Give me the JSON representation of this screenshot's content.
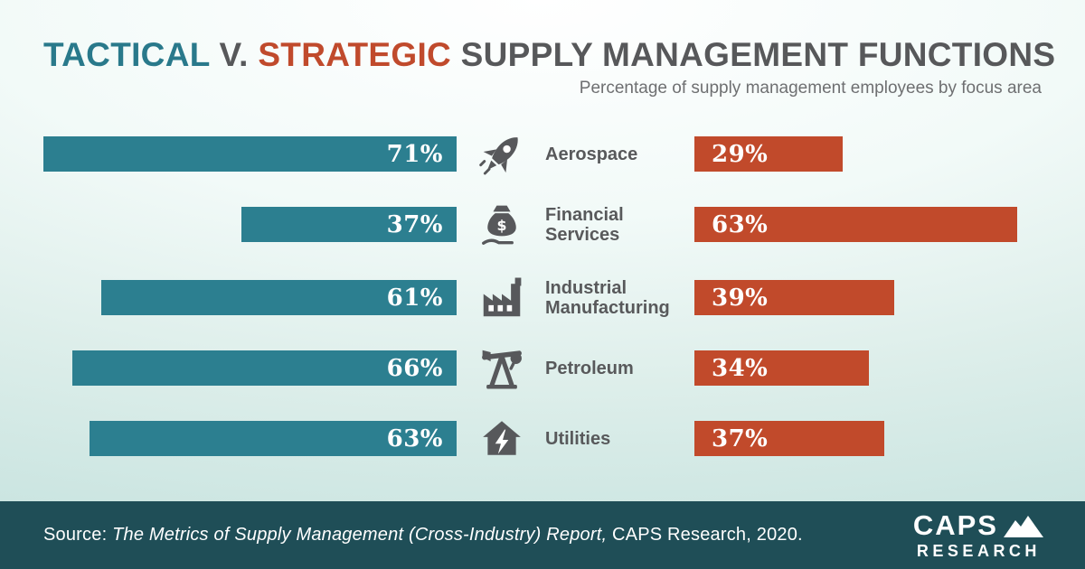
{
  "title": {
    "part1": "TACTICAL",
    "part2": "V.",
    "part3": "STRATEGIC",
    "part4": "SUPPLY MANAGEMENT FUNCTIONS"
  },
  "subtitle": "Percentage of supply management employees by focus area",
  "chart_data": {
    "type": "bar",
    "orientation": "horizontal",
    "diverging": true,
    "title": "Tactical v. Strategic Supply Management Functions",
    "subtitle": "Percentage of supply management employees by focus area",
    "categories": [
      "Aerospace",
      "Financial Services",
      "Industrial Manufacturing",
      "Petroleum",
      "Utilities"
    ],
    "category_lines": [
      [
        "Aerospace"
      ],
      [
        "Financial",
        "Services"
      ],
      [
        "Industrial",
        "Manufacturing"
      ],
      [
        "Petroleum"
      ],
      [
        "Utilities"
      ]
    ],
    "icons": [
      "rocket-icon",
      "money-bag-icon",
      "factory-icon",
      "oil-pump-icon",
      "house-bolt-icon"
    ],
    "series": [
      {
        "name": "Tactical",
        "color": "#2c7f90",
        "values": [
          71,
          37,
          61,
          66,
          63
        ]
      },
      {
        "name": "Strategic",
        "color": "#c14a2b",
        "values": [
          29,
          63,
          39,
          34,
          37
        ]
      }
    ],
    "value_suffix": "%",
    "xlim": [
      0,
      100
    ],
    "grid": false,
    "legend": false
  },
  "footer": {
    "source_prefix": "Source:",
    "source_italic": "The Metrics of Supply Management (Cross-Industry) Report,",
    "source_suffix": "CAPS Research, 2020.",
    "logo_line1": "CAPS",
    "logo_line2": "RESEARCH"
  },
  "colors": {
    "tactical_teal": "#2c7f90",
    "strategic_red": "#c14a2b",
    "title_teal": "#29798b",
    "title_red": "#c04a2c",
    "title_gray": "#57585a",
    "label_gray": "#58595b",
    "footer_bg": "#1f4e57",
    "background_top": "#ffffff",
    "background_bottom": "#cbe5e1"
  }
}
